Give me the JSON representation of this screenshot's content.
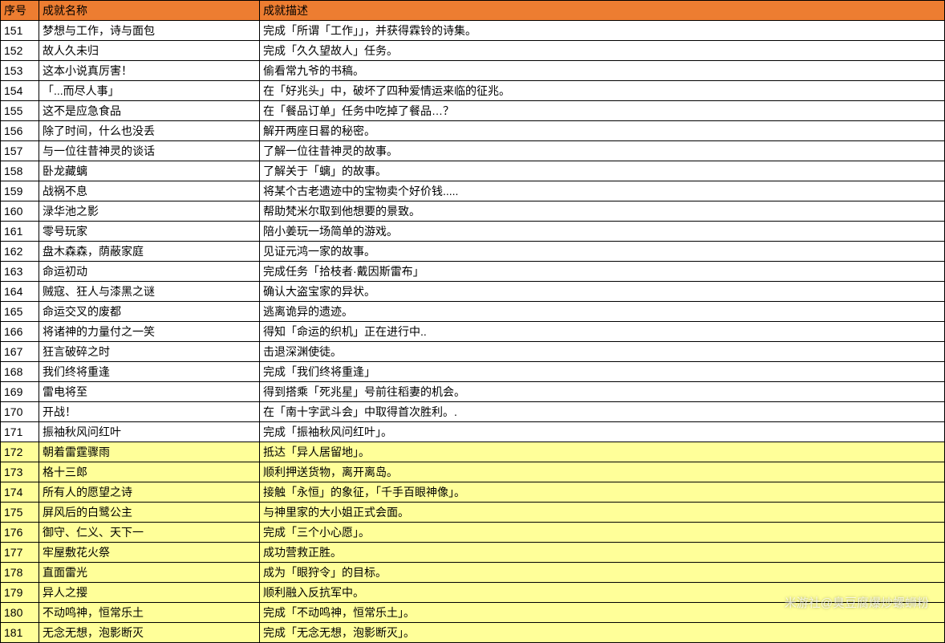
{
  "header": {
    "index": "序号",
    "name": "成就名称",
    "desc": "成就描述"
  },
  "rows": [
    {
      "index": "151",
      "name": "梦想与工作，诗与面包",
      "desc": "完成「所谓「工作」」，并获得霖铃的诗集。",
      "highlight": false
    },
    {
      "index": "152",
      "name": "故人久未归",
      "desc": "完成「久久望故人」任务。",
      "highlight": false
    },
    {
      "index": "153",
      "name": "这本小说真厉害！",
      "desc": "偷看常九爷的书稿。",
      "highlight": false
    },
    {
      "index": "154",
      "name": "「...而尽人事」",
      "desc": "在「好兆头」中，破坏了四种爱情运来临的征兆。",
      "highlight": false
    },
    {
      "index": "155",
      "name": "这不是应急食品",
      "desc": "在「餐品订单」任务中吃掉了餐品…？",
      "highlight": false
    },
    {
      "index": "156",
      "name": "除了时间，什么也没丢",
      "desc": "解开两座日晷的秘密。",
      "highlight": false
    },
    {
      "index": "157",
      "name": "与一位往昔神灵的谈话",
      "desc": "了解一位往昔神灵的故事。",
      "highlight": false
    },
    {
      "index": "158",
      "name": "卧龙藏螭",
      "desc": "了解关于「螭」的故事。",
      "highlight": false
    },
    {
      "index": "159",
      "name": "战祸不息",
      "desc": "将某个古老遗迹中的宝物卖个好价钱.....",
      "highlight": false
    },
    {
      "index": "160",
      "name": "渌华池之影",
      "desc": "帮助梵米尔取到他想要的景致。",
      "highlight": false
    },
    {
      "index": "161",
      "name": "零号玩家",
      "desc": "陪小姜玩一场简单的游戏。",
      "highlight": false
    },
    {
      "index": "162",
      "name": "盘木森森，荫蔽家庭",
      "desc": "见证元鸿一家的故事。",
      "highlight": false
    },
    {
      "index": "163",
      "name": "命运初动",
      "desc": "完成任务「拾枝者·戴因斯雷布」",
      "highlight": false
    },
    {
      "index": "164",
      "name": "贼寇、狂人与漆黑之谜",
      "desc": "确认大盗宝家的异状。",
      "highlight": false
    },
    {
      "index": "165",
      "name": "命运交叉的废都",
      "desc": "逃离诡异的遗迹。",
      "highlight": false
    },
    {
      "index": "166",
      "name": "将诸神的力量付之一笑",
      "desc": "得知「命运的织机」正在进行中..",
      "highlight": false
    },
    {
      "index": "167",
      "name": "狂言破碎之时",
      "desc": "击退深渊使徒。",
      "highlight": false
    },
    {
      "index": "168",
      "name": "我们终将重逢",
      "desc": "完成「我们终将重逢」",
      "highlight": false
    },
    {
      "index": "169",
      "name": "雷电将至",
      "desc": "得到搭乘「死兆星」号前往稻妻的机会。",
      "highlight": false
    },
    {
      "index": "170",
      "name": "开战！",
      "desc": "在「南十字武斗会」中取得首次胜利。.",
      "highlight": false
    },
    {
      "index": "171",
      "name": "振袖秋风问红叶",
      "desc": "完成「振袖秋风问红叶」。",
      "highlight": false
    },
    {
      "index": "172",
      "name": "朝着雷霆骤雨",
      "desc": "抵达「异人居留地」。",
      "highlight": true
    },
    {
      "index": "173",
      "name": "格十三郎",
      "desc": "顺利押送货物，离开离岛。",
      "highlight": true
    },
    {
      "index": "174",
      "name": "所有人的愿望之诗",
      "desc": "接触「永恒」的象征，「千手百眼神像」。",
      "highlight": true
    },
    {
      "index": "175",
      "name": "屏风后的白鹭公主",
      "desc": "与神里家的大小姐正式会面。",
      "highlight": true
    },
    {
      "index": "176",
      "name": "御守、仁义、天下一",
      "desc": "完成「三个小心愿」。",
      "highlight": true
    },
    {
      "index": "177",
      "name": "牢屋敷花火祭",
      "desc": "成功营救正胜。",
      "highlight": true
    },
    {
      "index": "178",
      "name": "直面雷光",
      "desc": "成为「眼狩令」的目标。",
      "highlight": true
    },
    {
      "index": "179",
      "name": "异人之撄",
      "desc": "顺利融入反抗军中。",
      "highlight": true
    },
    {
      "index": "180",
      "name": "不动鸣神，恒常乐土",
      "desc": "完成「不动鸣神，恒常乐土」。",
      "highlight": true
    },
    {
      "index": "181",
      "name": "无念无想，泡影断灭",
      "desc": "完成「无念无想，泡影断灭」。",
      "highlight": true
    }
  ],
  "watermark": "米游社@臭豆腐爆炒螺蛳粉",
  "colors": {
    "header_bg": "#ed7d31",
    "highlight_bg": "#ffff99",
    "border": "#000000",
    "background": "#ffffff"
  }
}
